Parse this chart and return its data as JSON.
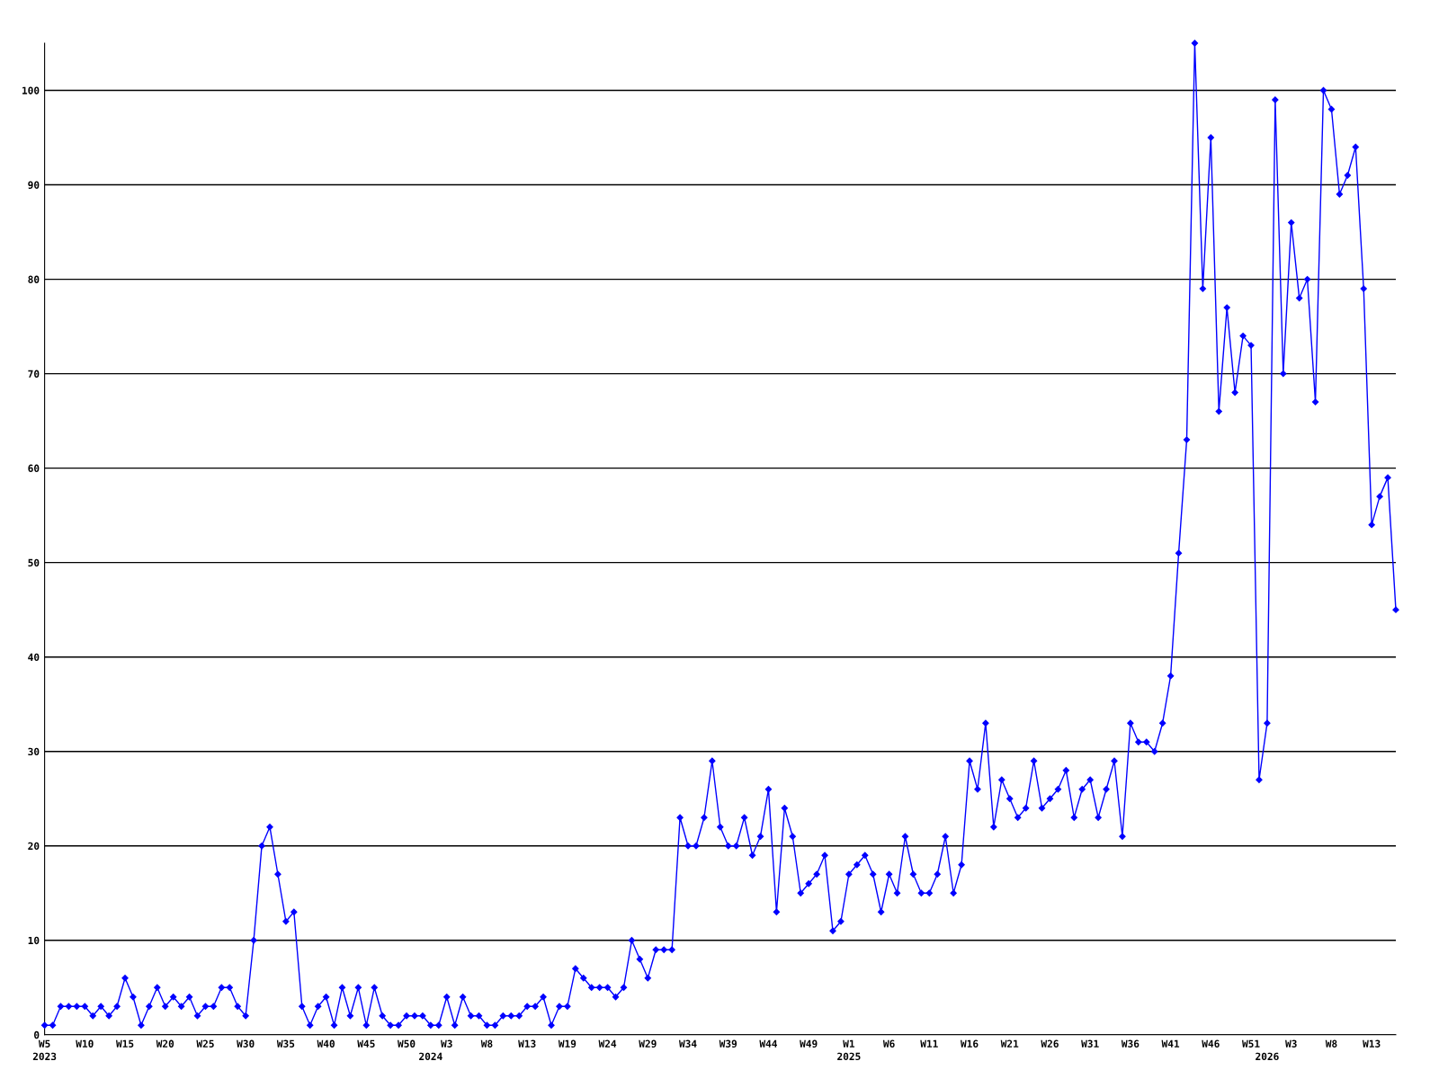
{
  "chart_data": {
    "type": "line",
    "categories": [
      "W5\n2023",
      null,
      null,
      null,
      null,
      "W10",
      null,
      null,
      null,
      null,
      "W15",
      null,
      null,
      null,
      null,
      "W20",
      null,
      null,
      null,
      null,
      "W25",
      null,
      null,
      null,
      null,
      "W30",
      null,
      null,
      null,
      null,
      "W35",
      null,
      null,
      null,
      null,
      "W40",
      null,
      null,
      null,
      null,
      "W45",
      null,
      null,
      null,
      null,
      "W50",
      null,
      null,
      "\n2024",
      null,
      "W3",
      null,
      null,
      null,
      null,
      "W8",
      null,
      null,
      null,
      null,
      "W13",
      null,
      null,
      null,
      null,
      "W19",
      null,
      null,
      null,
      null,
      "W24",
      null,
      null,
      null,
      null,
      "W29",
      null,
      null,
      null,
      null,
      "W34",
      null,
      null,
      null,
      null,
      "W39",
      null,
      null,
      null,
      null,
      "W44",
      null,
      null,
      null,
      null,
      "W49",
      null,
      null,
      null,
      null,
      "W1\n2025",
      null,
      null,
      null,
      null,
      "W6",
      null,
      null,
      null,
      null,
      "W11",
      null,
      null,
      null,
      null,
      "W16",
      null,
      null,
      null,
      null,
      "W21",
      null,
      null,
      null,
      null,
      "W26",
      null,
      null,
      null,
      null,
      "W31",
      null,
      null,
      null,
      null,
      "W36",
      null,
      null,
      null,
      null,
      "W41",
      null,
      null,
      null,
      null,
      "W46",
      null,
      null,
      null,
      null,
      "W51",
      null,
      "\n2026",
      null,
      null,
      "W3",
      null,
      null,
      null,
      null,
      "W8",
      null,
      null,
      null,
      null,
      "W13",
      null,
      null,
      null
    ],
    "series": [
      {
        "color": "#0000ff",
        "values": [
          1,
          1,
          3,
          3,
          3,
          3,
          2,
          3,
          2,
          3,
          6,
          4,
          1,
          3,
          5,
          3,
          4,
          3,
          4,
          2,
          3,
          3,
          5,
          5,
          3,
          2,
          10,
          20,
          22,
          17,
          12,
          13,
          3,
          1,
          3,
          4,
          1,
          5,
          2,
          5,
          1,
          5,
          2,
          1,
          1,
          2,
          2,
          2,
          1,
          1,
          4,
          1,
          4,
          2,
          2,
          1,
          1,
          2,
          2,
          2,
          3,
          3,
          4,
          1,
          3,
          3,
          7,
          6,
          5,
          5,
          5,
          4,
          5,
          10,
          8,
          6,
          9,
          9,
          9,
          23,
          20,
          20,
          23,
          29,
          22,
          20,
          20,
          23,
          19,
          21,
          26,
          13,
          24,
          21,
          15,
          16,
          17,
          19,
          11,
          12,
          17,
          18,
          19,
          17,
          13,
          17,
          15,
          21,
          17,
          15,
          15,
          17,
          21,
          15,
          18,
          29,
          26,
          33,
          22,
          27,
          25,
          23,
          24,
          29,
          24,
          25,
          26,
          28,
          23,
          26,
          27,
          23,
          26,
          29,
          21,
          33,
          31,
          31,
          30,
          33,
          38,
          51,
          63,
          105,
          79,
          95,
          66,
          77,
          68,
          74,
          73,
          27,
          33,
          99,
          70,
          86,
          78,
          80,
          67,
          100,
          98,
          89,
          91,
          94,
          79,
          54,
          57,
          59,
          45
        ]
      }
    ],
    "ylim": [
      0,
      105
    ],
    "yticks": [
      0,
      10,
      20,
      30,
      40,
      50,
      60,
      70,
      80,
      90,
      100
    ],
    "grid": "y",
    "marker": "diamond",
    "line_style": "solid",
    "legend": false
  }
}
